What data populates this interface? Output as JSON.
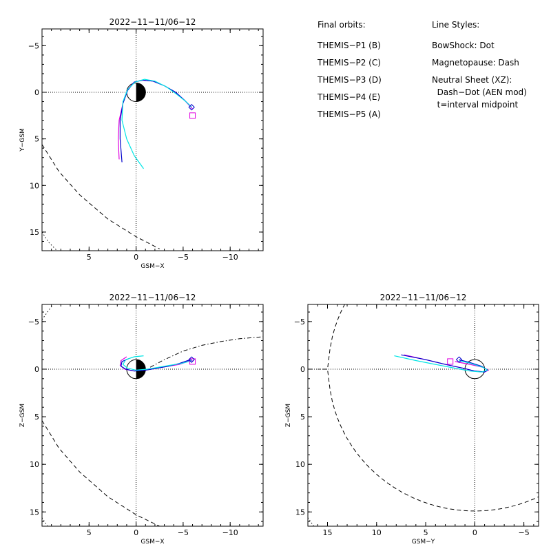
{
  "legend": {
    "orbits_title": "Final orbits:",
    "orbits": [
      {
        "label": "THEMIS−P1 (B)",
        "color": "#ff0000"
      },
      {
        "label": "THEMIS−P2 (C)",
        "color": "#00cc00"
      },
      {
        "label": "THEMIS−P3 (D)",
        "color": "#00e5e5"
      },
      {
        "label": "THEMIS−P4 (E)",
        "color": "#0000cc"
      },
      {
        "label": "THEMIS−P5 (A)",
        "color": "#e000e0"
      }
    ],
    "styles_title": "Line Styles:",
    "styles": [
      "BowShock: Dot",
      "Magnetopause: Dash",
      "Neutral Sheet (XZ):",
      "  Dash−Dot (AEN mod)",
      "  t=interval midpoint"
    ]
  },
  "chart_data": [
    {
      "type": "line",
      "title": "2022−11−11/06−12",
      "xlabel": "GSM−X",
      "ylabel": "Y−GSM",
      "xlim": [
        10,
        -13.5
      ],
      "ylim": [
        -6.8,
        17
      ],
      "xticks": [
        5,
        0,
        -5,
        -10
      ],
      "xtick_labels": [
        "5",
        "0",
        "−5",
        "−10"
      ],
      "yticks": [
        -5,
        0,
        5,
        10,
        15
      ],
      "ytick_labels": [
        "−5",
        "0",
        "5",
        "10",
        "15"
      ],
      "grid": "dotted zero axes",
      "earth": {
        "radius": 1,
        "night_side": "negative-x"
      },
      "series": [
        {
          "color": "#e000e0",
          "style": "solid",
          "x": [
            1.8,
            1.9,
            1.8,
            1.4,
            0.9,
            0.2,
            -0.7,
            -1.8,
            -3.0,
            -4.2,
            -5.2,
            -6.0
          ],
          "y": [
            7.2,
            5.0,
            3.0,
            1.2,
            -0.3,
            -1.1,
            -1.3,
            -1.2,
            -0.7,
            0.0,
            0.9,
            1.8
          ]
        },
        {
          "color": "#0000cc",
          "style": "solid",
          "x": [
            1.5,
            1.7,
            1.7,
            1.4,
            0.9,
            0.2,
            -0.7,
            -1.8,
            -3.0,
            -4.2,
            -5.2,
            -5.9
          ],
          "y": [
            7.5,
            5.0,
            3.0,
            1.2,
            -0.2,
            -1.1,
            -1.3,
            -1.2,
            -0.7,
            0.0,
            0.9,
            1.6
          ]
        },
        {
          "color": "#00e5e5",
          "style": "solid",
          "x": [
            -0.8,
            0.2,
            1.0,
            1.5,
            1.4,
            0.9,
            0.1,
            -0.9,
            -2.0,
            -3.2,
            -4.3,
            -5.3,
            -5.9
          ],
          "y": [
            8.2,
            6.8,
            5.0,
            3.0,
            1.0,
            -0.3,
            -1.1,
            -1.4,
            -1.2,
            -0.6,
            0.2,
            1.0,
            1.6
          ]
        }
      ],
      "markers": [
        {
          "shape": "square",
          "color": "#e000e0",
          "x": -6.0,
          "y": 2.5
        },
        {
          "shape": "diamond",
          "color": "#0000cc",
          "x": -5.9,
          "y": 1.6
        }
      ],
      "boundaries": [
        {
          "name": "magnetopause",
          "style": "dash",
          "x": [
            10,
            8.2,
            6.0,
            3.0,
            0.0,
            -2.5
          ],
          "y": [
            5.6,
            8.5,
            11.0,
            13.6,
            15.5,
            16.8
          ]
        },
        {
          "name": "bow-shock",
          "style": "dot",
          "x": [
            10,
            9.3,
            8.4
          ],
          "y": [
            15.0,
            16.1,
            17.0
          ]
        }
      ]
    },
    {
      "type": "line",
      "title": "2022−11−11/06−12",
      "xlabel": "GSM−X",
      "ylabel": "Z−GSM",
      "xlim": [
        10,
        -13.5
      ],
      "ylim": [
        -6.8,
        16.5
      ],
      "xticks": [
        5,
        0,
        -5,
        -10
      ],
      "xtick_labels": [
        "5",
        "0",
        "−5",
        "−10"
      ],
      "yticks": [
        -5,
        0,
        5,
        10,
        15
      ],
      "ytick_labels": [
        "−5",
        "0",
        "5",
        "10",
        "15"
      ],
      "grid": "dotted zero axes",
      "earth": {
        "radius": 1,
        "night_side": "negative-x"
      },
      "series": [
        {
          "color": "#e000e0",
          "style": "solid",
          "x": [
            1.0,
            1.6,
            1.7,
            1.2,
            0.2,
            -1.0,
            -2.2,
            -3.4,
            -4.6,
            -5.5,
            -6.0
          ],
          "y": [
            -1.3,
            -0.9,
            -0.4,
            0.0,
            0.2,
            0.1,
            -0.1,
            -0.3,
            -0.5,
            -0.8,
            -0.9
          ]
        },
        {
          "color": "#0000cc",
          "style": "solid",
          "x": [
            0.8,
            1.5,
            1.6,
            1.1,
            0.2,
            -1.0,
            -2.2,
            -3.4,
            -4.6,
            -5.5,
            -5.9
          ],
          "y": [
            -1.1,
            -0.8,
            -0.3,
            0.0,
            0.2,
            0.1,
            -0.1,
            -0.3,
            -0.6,
            -0.9,
            -1.0
          ]
        },
        {
          "color": "#00e5e5",
          "style": "solid",
          "x": [
            -0.8,
            0.2,
            1.1,
            1.4,
            0.9,
            0.0,
            -1.2,
            -2.4,
            -3.6,
            -4.8,
            -5.6,
            -5.9
          ],
          "y": [
            -1.4,
            -1.3,
            -1.0,
            -0.5,
            -0.1,
            0.1,
            0.0,
            -0.2,
            -0.4,
            -0.6,
            -0.8,
            -0.9
          ]
        }
      ],
      "markers": [
        {
          "shape": "square",
          "color": "#e000e0",
          "x": -6.0,
          "y": -0.8
        },
        {
          "shape": "diamond",
          "color": "#0000cc",
          "x": -5.9,
          "y": -1.0
        }
      ],
      "boundaries": [
        {
          "name": "magnetopause",
          "style": "dash",
          "x": [
            10,
            8.2,
            6.0,
            3.0,
            0.0,
            -2.5
          ],
          "y": [
            5.4,
            8.3,
            10.8,
            13.4,
            15.3,
            16.5
          ]
        },
        {
          "name": "bow-shock",
          "style": "dot",
          "x": [
            10,
            9.4
          ],
          "y": [
            15.6,
            16.5
          ]
        },
        {
          "name": "bow-shock",
          "style": "dot",
          "x": [
            10,
            9.2,
            8.8
          ],
          "y": [
            -5.2,
            -6.3,
            -6.8
          ]
        },
        {
          "name": "neutral-sheet",
          "style": "dash-dot",
          "x": [
            -1.5,
            -3.0,
            -5.0,
            -7.0,
            -9.0,
            -11.0,
            -13.5
          ],
          "y": [
            -0.2,
            -1.0,
            -1.9,
            -2.5,
            -2.9,
            -3.2,
            -3.4
          ]
        }
      ]
    },
    {
      "type": "line",
      "title": "2022−11−11/06−12",
      "xlabel": "GSM−Y",
      "ylabel": "Z−GSM",
      "xlim": [
        17,
        -6.5
      ],
      "ylim": [
        -6.8,
        16.5
      ],
      "xticks": [
        15,
        10,
        5,
        0,
        -5
      ],
      "xtick_labels": [
        "15",
        "10",
        "5",
        "0",
        "−5"
      ],
      "yticks": [
        -5,
        0,
        5,
        10,
        15
      ],
      "ytick_labels": [
        "−5",
        "0",
        "5",
        "10",
        "15"
      ],
      "grid": "dotted zero axes",
      "earth": {
        "radius": 1,
        "night_side": "none"
      },
      "series": [
        {
          "color": "#e000e0",
          "style": "solid",
          "x": [
            7.2,
            5.0,
            3.0,
            1.2,
            0.0,
            -1.0,
            -1.4,
            -0.8,
            0.5,
            2.0
          ],
          "y": [
            -1.5,
            -1.0,
            -0.5,
            -0.1,
            0.2,
            0.3,
            0.1,
            -0.2,
            -0.5,
            -0.8
          ]
        },
        {
          "color": "#0000cc",
          "style": "solid",
          "x": [
            7.5,
            5.0,
            3.0,
            1.2,
            0.0,
            -1.0,
            -1.3,
            -0.7,
            0.5,
            1.6
          ],
          "y": [
            -1.5,
            -1.0,
            -0.5,
            -0.1,
            0.2,
            0.3,
            0.1,
            -0.3,
            -0.7,
            -1.0
          ]
        },
        {
          "color": "#00e5e5",
          "style": "solid",
          "x": [
            8.2,
            6.0,
            4.0,
            2.0,
            0.5,
            -0.7,
            -1.3,
            -0.8,
            0.4,
            1.6
          ],
          "y": [
            -1.4,
            -0.9,
            -0.5,
            -0.1,
            0.2,
            0.3,
            0.1,
            -0.2,
            -0.6,
            -0.9
          ]
        }
      ],
      "markers": [
        {
          "shape": "square",
          "color": "#e000e0",
          "x": 2.5,
          "y": -0.8
        },
        {
          "shape": "diamond",
          "color": "#0000cc",
          "x": 1.6,
          "y": -1.0
        }
      ],
      "boundaries": [
        {
          "name": "magnetopause",
          "style": "dash",
          "circle_radius": 14.9,
          "x_from": 16.0,
          "x_to": -6.5
        },
        {
          "name": "bow-shock",
          "style": "dot",
          "x": [
            17,
            16.4
          ],
          "y": [
            15.6,
            16.5
          ]
        }
      ]
    }
  ]
}
